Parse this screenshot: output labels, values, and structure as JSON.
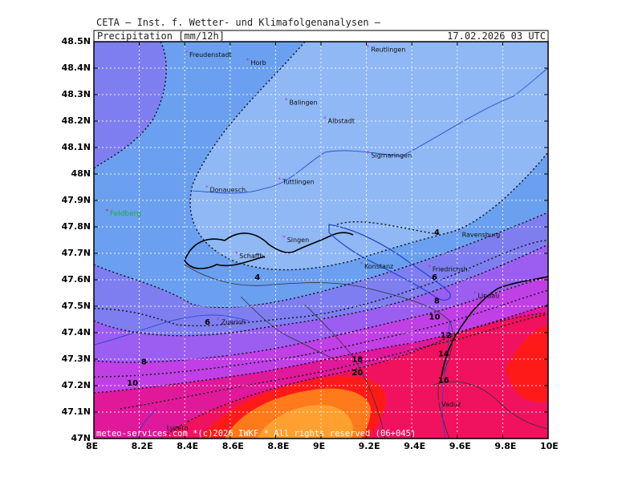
{
  "header": {
    "title": "CETA — Inst. f. Wetter- und Klimafolgenanalysen —",
    "field": "Precipitation [mm/12h]",
    "datetime": "17.02.2026 03 UTC"
  },
  "footer": {
    "copyright": "meteo-services.com *(c)2026 IWKF * All rights reserved (06+045)"
  },
  "axes": {
    "y_labels": [
      "48.5N",
      "48.4N",
      "48.3N",
      "48.2N",
      "48.1N",
      "48N",
      "47.9N",
      "47.8N",
      "47.7N",
      "47.6N",
      "47.5N",
      "47.4N",
      "47.3N",
      "47.2N",
      "47.1N",
      "47N"
    ],
    "x_labels": [
      "8E",
      "8.2E",
      "8.4E",
      "8.6E",
      "8.8E",
      "9E",
      "9.2E",
      "9.4E",
      "9.6E",
      "9.8E",
      "10E"
    ]
  },
  "cities": [
    {
      "name": "Freudenstadt",
      "lon": 8.41,
      "lat": 48.46,
      "color": "#111111"
    },
    {
      "name": "Horb",
      "lon": 8.68,
      "lat": 48.43,
      "color": "#111111"
    },
    {
      "name": "Reutlingen",
      "lon": 9.21,
      "lat": 48.48,
      "color": "#111111"
    },
    {
      "name": "Balingen",
      "lon": 8.85,
      "lat": 48.28,
      "color": "#111111"
    },
    {
      "name": "Albstadt",
      "lon": 9.02,
      "lat": 48.21,
      "color": "#111111"
    },
    {
      "name": "Sigmaringen",
      "lon": 9.21,
      "lat": 48.08,
      "color": "#111111"
    },
    {
      "name": "Tuttlingen",
      "lon": 8.82,
      "lat": 47.98,
      "color": "#111111"
    },
    {
      "name": "Donauesch.",
      "lon": 8.5,
      "lat": 47.95,
      "color": "#111111"
    },
    {
      "name": "Feldberg",
      "lon": 8.06,
      "lat": 47.86,
      "color": "#22aa44"
    },
    {
      "name": "Singen",
      "lon": 8.84,
      "lat": 47.76,
      "color": "#111111"
    },
    {
      "name": "Schaffh.",
      "lon": 8.63,
      "lat": 47.7,
      "color": "#111111"
    },
    {
      "name": "Konstanz",
      "lon": 9.18,
      "lat": 47.66,
      "color": "#111111"
    },
    {
      "name": "Friedrichsh.",
      "lon": 9.48,
      "lat": 47.65,
      "color": "#111111"
    },
    {
      "name": "Ravensburg",
      "lon": 9.61,
      "lat": 47.78,
      "color": "#111111"
    },
    {
      "name": "Lindau",
      "lon": 9.68,
      "lat": 47.55,
      "color": "#111111"
    },
    {
      "name": "Zuerich",
      "lon": 8.55,
      "lat": 47.45,
      "color": "#111111"
    },
    {
      "name": "Vaduz",
      "lon": 9.52,
      "lat": 47.14,
      "color": "#111111"
    },
    {
      "name": "Luzern",
      "lon": 8.31,
      "lat": 47.05,
      "color": "#111111"
    }
  ],
  "contour_labels": [
    {
      "text": "4",
      "lon": 9.51,
      "lat": 47.77
    },
    {
      "text": "4",
      "lon": 8.72,
      "lat": 47.6
    },
    {
      "text": "6",
      "lon": 9.5,
      "lat": 47.6
    },
    {
      "text": "6",
      "lon": 8.5,
      "lat": 47.43
    },
    {
      "text": "8",
      "lon": 9.51,
      "lat": 47.51
    },
    {
      "text": "8",
      "lon": 8.22,
      "lat": 47.28
    },
    {
      "text": "10",
      "lon": 9.5,
      "lat": 47.45
    },
    {
      "text": "10",
      "lon": 8.17,
      "lat": 47.2
    },
    {
      "text": "12",
      "lon": 9.55,
      "lat": 47.38
    },
    {
      "text": "14",
      "lon": 9.54,
      "lat": 47.31
    },
    {
      "text": "16",
      "lon": 9.54,
      "lat": 47.21
    },
    {
      "text": "18",
      "lon": 9.16,
      "lat": 47.29
    },
    {
      "text": "20",
      "lon": 9.16,
      "lat": 47.24
    }
  ],
  "colors": {
    "light_blue": "#8fb8f5",
    "mid_blue": "#6aa0ef",
    "blue_violet": "#7f7ef0",
    "violet": "#9b5ef0",
    "purple": "#c040e6",
    "magenta": "#e0189a",
    "crimson": "#f0125e",
    "red": "#ff1a1a",
    "orange": "#ff7a1a",
    "light_orange": "#ffa030"
  }
}
